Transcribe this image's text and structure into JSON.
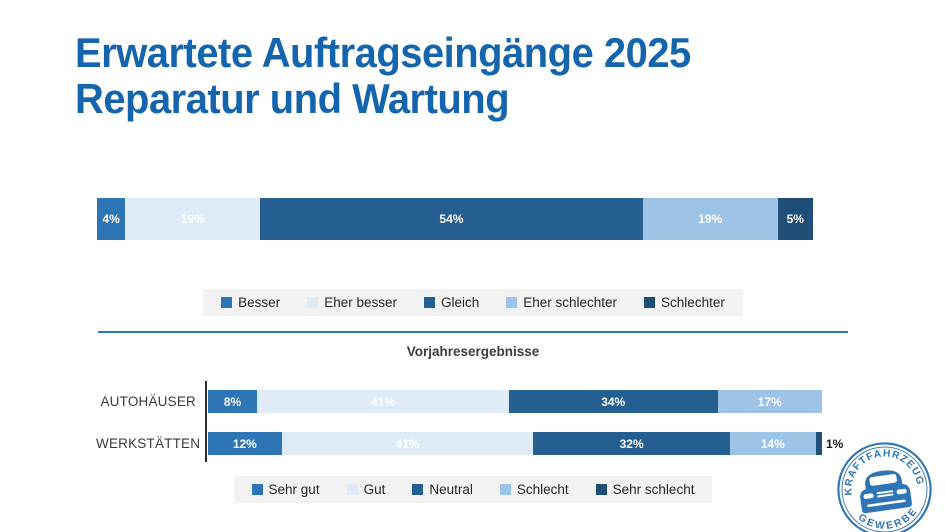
{
  "slide": {
    "title_line1": "Erwartete Auftragseingänge 2025",
    "title_line2": "Reparatur und Wartung",
    "title_color": "#1565AE",
    "background": "#FFFFFF"
  },
  "palette": {
    "blue_medium": "#2E75B6",
    "blue_verylight": "#DEEBF7",
    "blue_dark": "#255E91",
    "blue_light": "#9DC3E6",
    "blue_navy": "#1F4E79",
    "legend_background": "#F2F2F2",
    "divider": "#2E75B6"
  },
  "chart_data": [
    {
      "type": "bar",
      "variant": "horizontal-stacked-100",
      "title": "",
      "categories": [
        ""
      ],
      "series": [
        {
          "name": "Besser",
          "color": "#2E75B6",
          "values": [
            4
          ]
        },
        {
          "name": "Eher besser",
          "color": "#DEEBF7",
          "values": [
            19
          ]
        },
        {
          "name": "Gleich",
          "color": "#255E91",
          "values": [
            54
          ]
        },
        {
          "name": "Eher schlechter",
          "color": "#9DC3E6",
          "values": [
            19
          ]
        },
        {
          "name": "Schlechter",
          "color": "#1F4E79",
          "values": [
            5
          ]
        }
      ],
      "value_suffix": "%",
      "legend_position": "bottom",
      "grid": false
    },
    {
      "type": "bar",
      "variant": "horizontal-stacked-100",
      "title": "Vorjahresergebnisse",
      "categories": [
        "AUTOHÄUSER",
        "WERKSTÄTTEN"
      ],
      "series": [
        {
          "name": "Sehr gut",
          "color": "#2E75B6",
          "values": [
            8,
            12
          ]
        },
        {
          "name": "Gut",
          "color": "#DEEBF7",
          "values": [
            41,
            41
          ]
        },
        {
          "name": "Neutral",
          "color": "#255E91",
          "values": [
            34,
            32
          ]
        },
        {
          "name": "Schlecht",
          "color": "#9DC3E6",
          "values": [
            17,
            14
          ]
        },
        {
          "name": "Sehr schlecht",
          "color": "#1F4E79",
          "values": [
            0,
            1
          ]
        }
      ],
      "value_suffix": "%",
      "legend_position": "bottom",
      "grid": false
    }
  ],
  "logo": {
    "ring_text_top": "KRAFTFAHRZEUG",
    "ring_text_bottom": "GEWERBE",
    "icon": "car-front-icon",
    "color": "#2E75B6"
  }
}
